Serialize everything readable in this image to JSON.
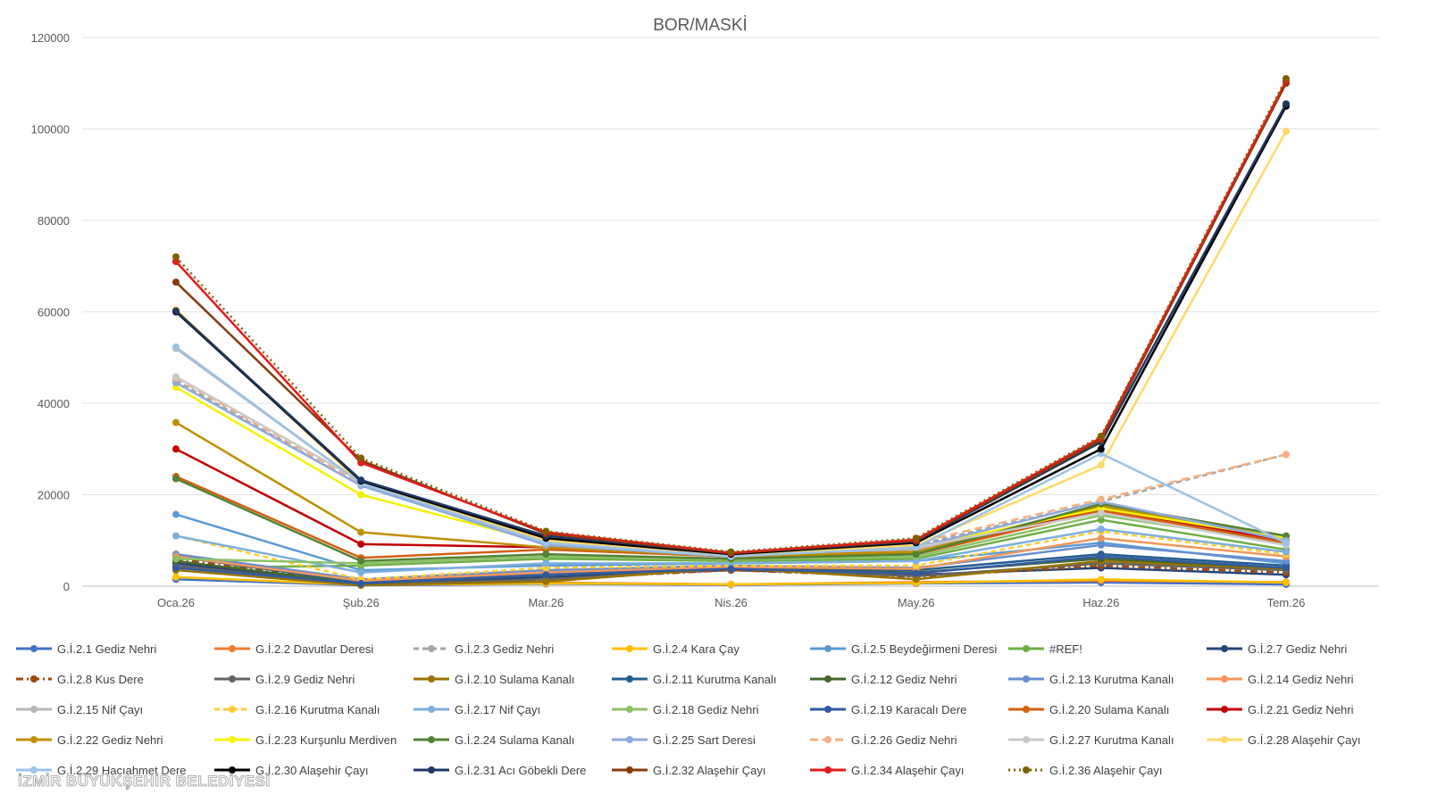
{
  "watermark": "İZMİR BÜYÜKŞEHİR BELEDİYESİ",
  "chart_data": {
    "type": "line",
    "title": "BOR/MASKİ",
    "xlabel": "",
    "ylabel": "",
    "ylim": [
      0,
      120000
    ],
    "yticks": [
      0,
      20000,
      40000,
      60000,
      80000,
      100000,
      120000
    ],
    "grid": true,
    "legend_position": "bottom",
    "x": [
      "Oca.26",
      "Şub.26",
      "Mar.26",
      "Nis.26",
      "May.26",
      "Haz.26",
      "Tem.26"
    ],
    "series": [
      {
        "name": "G.İ.2.1 Gediz Nehri",
        "color": "#4472C4",
        "dash": "",
        "values": [
          1500,
          200,
          500,
          300,
          600,
          800,
          400
        ]
      },
      {
        "name": "G.İ.2.2 Davutlar Deresi",
        "color": "#ED7D31",
        "dash": "",
        "values": [
          7000,
          500,
          800,
          400,
          900,
          1200,
          900
        ]
      },
      {
        "name": "G.İ.2.3 Gediz Nehri",
        "color": "#A5A5A5",
        "dash": "6,4",
        "values": [
          45000,
          22000,
          9500,
          6800,
          9000,
          18500,
          28800
        ]
      },
      {
        "name": "G.İ.2.4 Kara Çay",
        "color": "#FFC000",
        "dash": "",
        "values": [
          2000,
          300,
          600,
          400,
          700,
          1500,
          800
        ]
      },
      {
        "name": "G.İ.2.5 Beydeğirmeni Deresi",
        "color": "#5B9BD5",
        "dash": "",
        "values": [
          15700,
          3500,
          4500,
          5000,
          5500,
          9500,
          5000
        ]
      },
      {
        "name": "#REF!",
        "color": "#70AD47",
        "dash": "",
        "values": [
          4000,
          4500,
          6000,
          5500,
          6000,
          14500,
          8000
        ]
      },
      {
        "name": "G.İ.2.7 Gediz Nehri",
        "color": "#264478",
        "dash": "",
        "values": [
          5000,
          500,
          2000,
          3500,
          2500,
          4000,
          2500
        ]
      },
      {
        "name": "G.İ.2.8 Kus Dere",
        "color": "#9E480E",
        "dash": "8,4,2,4",
        "values": [
          6000,
          400,
          1500,
          3500,
          2000,
          4500,
          3000
        ]
      },
      {
        "name": "G.İ.2.9 Gediz Nehri",
        "color": "#636363",
        "dash": "",
        "values": [
          4500,
          300,
          1500,
          3800,
          2200,
          5000,
          3500
        ]
      },
      {
        "name": "G.İ.2.10 Sulama Kanalı",
        "color": "#997300",
        "dash": "",
        "values": [
          3500,
          200,
          1000,
          4000,
          1500,
          5500,
          3800
        ]
      },
      {
        "name": "G.İ.2.11 Kurutma Kanalı",
        "color": "#255E91",
        "dash": "",
        "values": [
          6500,
          800,
          3000,
          4000,
          3500,
          7000,
          4500
        ]
      },
      {
        "name": "G.İ.2.12 Gediz Nehri",
        "color": "#43682B",
        "dash": "",
        "values": [
          5500,
          500,
          2500,
          3800,
          3000,
          6000,
          4000
        ]
      },
      {
        "name": "G.İ.2.13 Kurutma Kanalı",
        "color": "#698ED0",
        "dash": "",
        "values": [
          7000,
          1500,
          3500,
          4500,
          4000,
          9000,
          5500
        ]
      },
      {
        "name": "G.İ.2.14 Gediz Nehri",
        "color": "#F1975A",
        "dash": "",
        "values": [
          6500,
          1200,
          3000,
          4200,
          3800,
          10500,
          6500
        ]
      },
      {
        "name": "G.İ.2.15 Nif Çayı",
        "color": "#B7B7B7",
        "dash": "",
        "values": [
          52000,
          22500,
          9000,
          6500,
          8000,
          17500,
          10000
        ]
      },
      {
        "name": "G.İ.2.16 Kurutma Kanalı",
        "color": "#FFCD33",
        "dash": "6,4",
        "values": [
          11000,
          1500,
          4000,
          4500,
          4500,
          12000,
          7000
        ]
      },
      {
        "name": "G.İ.2.17 Nif Çayı",
        "color": "#7CAFDD",
        "dash": "",
        "values": [
          11000,
          3000,
          5000,
          5000,
          5500,
          12500,
          7500
        ]
      },
      {
        "name": "G.İ.2.18 Gediz Nehri",
        "color": "#8CC168",
        "dash": "",
        "values": [
          6000,
          5000,
          6500,
          5800,
          6500,
          15500,
          9500
        ]
      },
      {
        "name": "G.İ.2.19 Karacalı Dere",
        "color": "#335AA1",
        "dash": "",
        "values": [
          4000,
          600,
          2500,
          3800,
          2800,
          6500,
          4000
        ]
      },
      {
        "name": "G.İ.2.20 Sulama Kanalı",
        "color": "#D26012",
        "dash": "",
        "values": [
          24000,
          6200,
          8000,
          6500,
          7000,
          16500,
          9500
        ]
      },
      {
        "name": "G.İ.2.21 Gediz Nehri",
        "color": "#C00000",
        "dash": "",
        "values": [
          30000,
          9200,
          8500,
          6500,
          7500,
          17000,
          10000
        ]
      },
      {
        "name": "G.İ.2.22 Gediz Nehri",
        "color": "#BF9000",
        "dash": "",
        "values": [
          35800,
          11800,
          8500,
          6500,
          7500,
          17500,
          10500
        ]
      },
      {
        "name": "G.İ.2.23 Kurşunlu Merdiven",
        "color": "#F2F200",
        "dash": "",
        "values": [
          43500,
          20000,
          9500,
          6800,
          8500,
          17000,
          10500
        ]
      },
      {
        "name": "G.İ.2.24 Sulama Kanalı",
        "color": "#548235",
        "dash": "",
        "values": [
          23500,
          5500,
          7000,
          6000,
          7000,
          18000,
          11000
        ]
      },
      {
        "name": "G.İ.2.25 Sart Deresi",
        "color": "#8FAADC",
        "dash": "",
        "values": [
          44500,
          22000,
          9000,
          6500,
          8500,
          18500,
          10000
        ]
      },
      {
        "name": "G.İ.2.26 Gediz Nehri",
        "color": "#F4B183",
        "dash": "9,5",
        "values": [
          45500,
          22500,
          9800,
          6800,
          9500,
          19000,
          28800
        ]
      },
      {
        "name": "G.İ.2.27 Kurutma Kanalı",
        "color": "#C9C9C9",
        "dash": "",
        "values": [
          45800,
          23000,
          9500,
          6800,
          8500,
          16000,
          9000
        ]
      },
      {
        "name": "G.İ.2.28 Alaşehir Çayı",
        "color": "#FFD966",
        "dash": "",
        "values": [
          60500,
          22500,
          10000,
          6800,
          9000,
          26500,
          99500
        ]
      },
      {
        "name": "G.İ.2.29 Hacıahmet Dere",
        "color": "#9DC3E6",
        "dash": "",
        "values": [
          52300,
          22500,
          9500,
          6500,
          8500,
          29000,
          9500
        ]
      },
      {
        "name": "G.İ.2.30 Alaşehir Çayı",
        "color": "#000000",
        "dash": "",
        "values": [
          60000,
          23000,
          10500,
          7000,
          9500,
          30000,
          105000
        ]
      },
      {
        "name": "G.İ.2.31 Acı Göbekli Dere",
        "color": "#203864",
        "dash": "",
        "values": [
          60200,
          23200,
          11000,
          7200,
          9800,
          31500,
          105500
        ]
      },
      {
        "name": "G.İ.2.32 Alaşehir Çayı",
        "color": "#843C0C",
        "dash": "",
        "values": [
          66500,
          27500,
          11500,
          7200,
          10000,
          32000,
          110000
        ]
      },
      {
        "name": "G.İ.2.34 Alaşehir Çayı",
        "color": "#E31A1C",
        "dash": "",
        "values": [
          71000,
          27000,
          11800,
          7300,
          10200,
          32500,
          110500
        ]
      },
      {
        "name": "G.İ.2.36 Alaşehir Çayı",
        "color": "#7F6000",
        "dash": "2,4",
        "values": [
          72000,
          28000,
          12000,
          7500,
          10500,
          32800,
          111000
        ]
      }
    ]
  }
}
